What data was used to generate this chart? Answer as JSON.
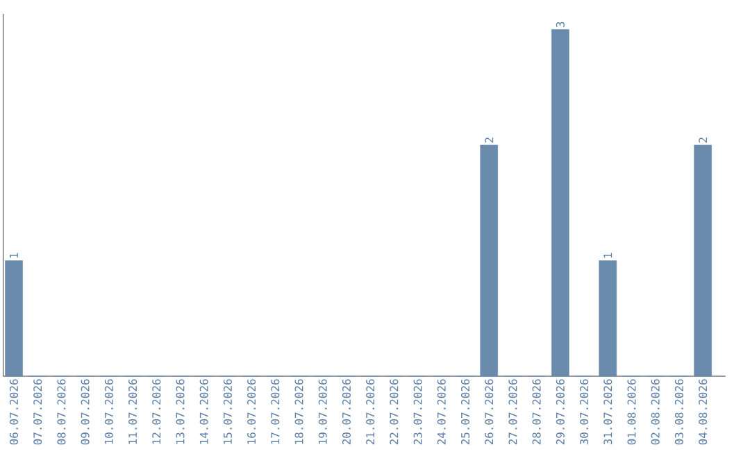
{
  "chart_data": {
    "type": "bar",
    "categories": [
      "06.07.2026",
      "07.07.2026",
      "08.07.2026",
      "09.07.2026",
      "10.07.2026",
      "11.07.2026",
      "12.07.2026",
      "13.07.2026",
      "14.07.2026",
      "15.07.2026",
      "16.07.2026",
      "17.07.2026",
      "18.07.2026",
      "19.07.2026",
      "20.07.2026",
      "21.07.2026",
      "22.07.2026",
      "23.07.2026",
      "24.07.2026",
      "25.07.2026",
      "26.07.2026",
      "27.07.2026",
      "28.07.2026",
      "29.07.2026",
      "30.07.2026",
      "31.07.2026",
      "01.08.2026",
      "02.08.2026",
      "03.08.2026",
      "04.08.2026"
    ],
    "values": [
      1,
      0,
      0,
      0,
      0,
      0,
      0,
      0,
      0,
      0,
      0,
      0,
      0,
      0,
      0,
      0,
      0,
      0,
      0,
      0,
      2,
      0,
      0,
      3,
      0,
      1,
      0,
      0,
      0,
      2
    ],
    "value_labels": [
      "1",
      null,
      null,
      null,
      null,
      null,
      null,
      null,
      null,
      null,
      null,
      null,
      null,
      null,
      null,
      null,
      null,
      null,
      null,
      null,
      "2",
      null,
      null,
      "3",
      null,
      "1",
      null,
      null,
      null,
      "2"
    ],
    "color": "#6a8bab",
    "tick_labels": "x",
    "grid": false
  }
}
